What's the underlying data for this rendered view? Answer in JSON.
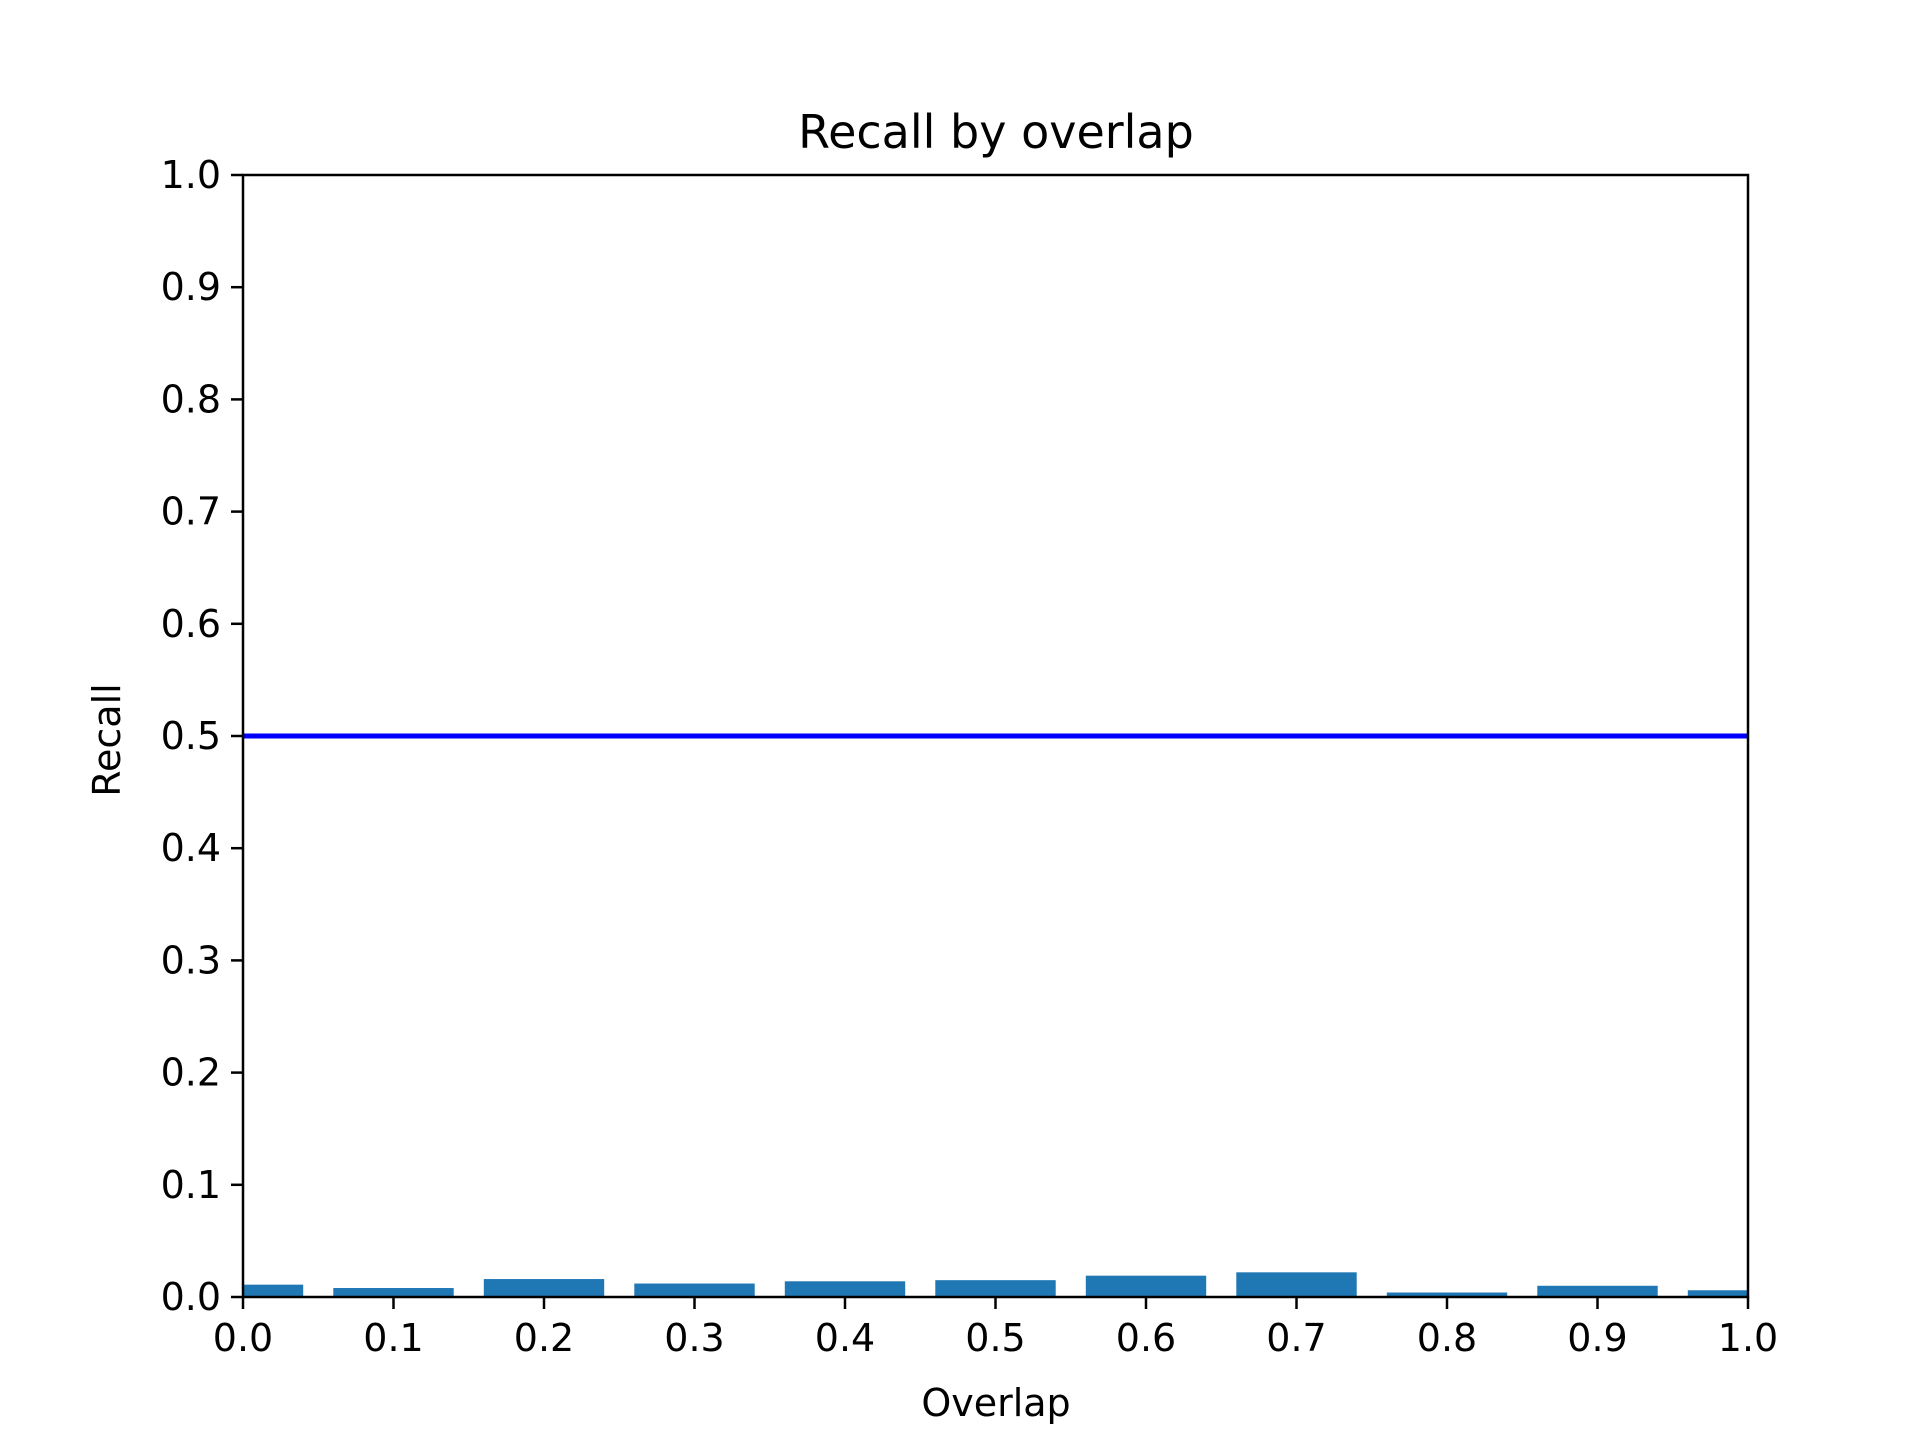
{
  "chart_data": {
    "type": "bar",
    "title": "Recall by overlap",
    "xlabel": "Overlap",
    "ylabel": "Recall",
    "xlim": [
      0.0,
      1.0
    ],
    "ylim": [
      0.0,
      1.0
    ],
    "x_ticks": [
      "0.0",
      "0.1",
      "0.2",
      "0.3",
      "0.4",
      "0.5",
      "0.6",
      "0.7",
      "0.8",
      "0.9",
      "1.0"
    ],
    "y_ticks": [
      "0.0",
      "0.1",
      "0.2",
      "0.3",
      "0.4",
      "0.5",
      "0.6",
      "0.7",
      "0.8",
      "0.9",
      "1.0"
    ],
    "bar_width": 0.08,
    "x": [
      0.0,
      0.1,
      0.2,
      0.3,
      0.4,
      0.5,
      0.6,
      0.7,
      0.8,
      0.9,
      1.0
    ],
    "values": [
      0.011,
      0.008,
      0.016,
      0.012,
      0.014,
      0.015,
      0.019,
      0.022,
      0.004,
      0.01,
      0.006
    ],
    "reference_line": {
      "y": 0.5,
      "color": "#0000ff"
    },
    "bar_color": "#1f77b4",
    "grid": false,
    "legend": "none"
  }
}
